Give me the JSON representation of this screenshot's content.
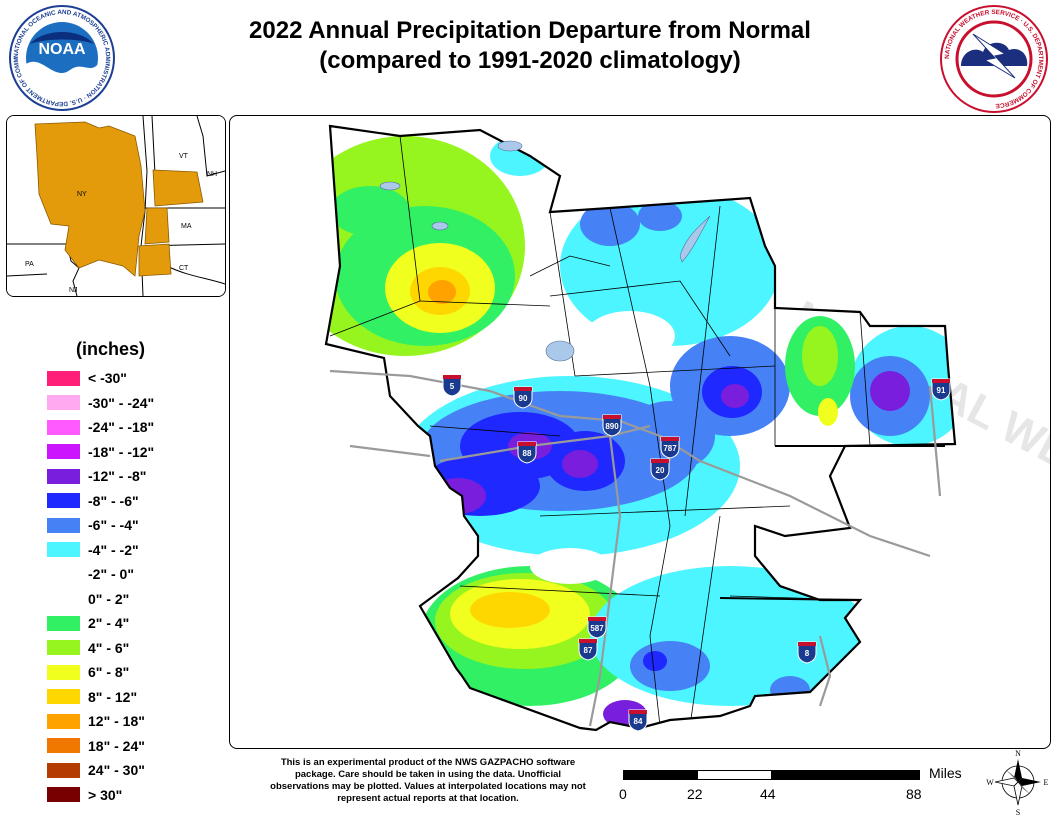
{
  "title": {
    "line1": "2022 Annual Precipitation Departure from Normal",
    "line2": "(compared to 1991-2020 climatology)"
  },
  "logos": {
    "noaa_center": "NOAA",
    "noaa_ring": "NATIONAL OCEANIC AND ATMOSPHERIC ADMINISTRATION · U.S. DEPARTMENT OF COMMERCE",
    "nws_ring": "NATIONAL WEATHER SERVICE · U.S. DEPARTMENT OF COMMERCE"
  },
  "inset": {
    "states": [
      "VT",
      "NH",
      "NY",
      "MA",
      "CT",
      "PA",
      "NJ"
    ],
    "highlight_color": "#e39b0b"
  },
  "legend": {
    "title": "(inches)",
    "items": [
      {
        "label": "< -30\"",
        "color": "#ff1e78"
      },
      {
        "label": "-30\" - -24\"",
        "color": "#ffaaf0"
      },
      {
        "label": "-24\" - -18\"",
        "color": "#ff5aff"
      },
      {
        "label": "-18\" - -12\"",
        "color": "#cc14ff"
      },
      {
        "label": "-12\" - -8\"",
        "color": "#781edc"
      },
      {
        "label": "-8\" - -6\"",
        "color": "#1e28ff"
      },
      {
        "label": "-6\" - -4\"",
        "color": "#4682f5"
      },
      {
        "label": "-4\" - -2\"",
        "color": "#4cf5ff"
      },
      {
        "label": "-2\" - 0\"",
        "color": "#ffffff"
      },
      {
        "label": "0\" - 2\"",
        "color": "#ffffff"
      },
      {
        "label": "2\" - 4\"",
        "color": "#32f064"
      },
      {
        "label": "4\" - 6\"",
        "color": "#96f51e"
      },
      {
        "label": "6\" - 8\"",
        "color": "#f0ff1e"
      },
      {
        "label": "8\" - 12\"",
        "color": "#ffd700"
      },
      {
        "label": "12\" - 18\"",
        "color": "#ffa200"
      },
      {
        "label": "18\" - 24\"",
        "color": "#f07800"
      },
      {
        "label": "24\" - 30\"",
        "color": "#b43c00"
      },
      {
        "label": "> 30\"",
        "color": "#780000"
      }
    ]
  },
  "highways": [
    "5",
    "90",
    "890",
    "88",
    "787",
    "20",
    "587",
    "87",
    "84",
    "91",
    "8"
  ],
  "disclaimer": "This is an experimental product of the NWS GAZPACHO software package. Care should be taken in using the data. Unofficial observations may be plotted. Values at interpolated locations may not represent actual reports at that location.",
  "scale": {
    "unit": "Miles",
    "ticks": [
      "0",
      "22",
      "44",
      "88"
    ]
  },
  "compass": {
    "n": "N",
    "s": "S",
    "e": "E",
    "w": "W"
  }
}
